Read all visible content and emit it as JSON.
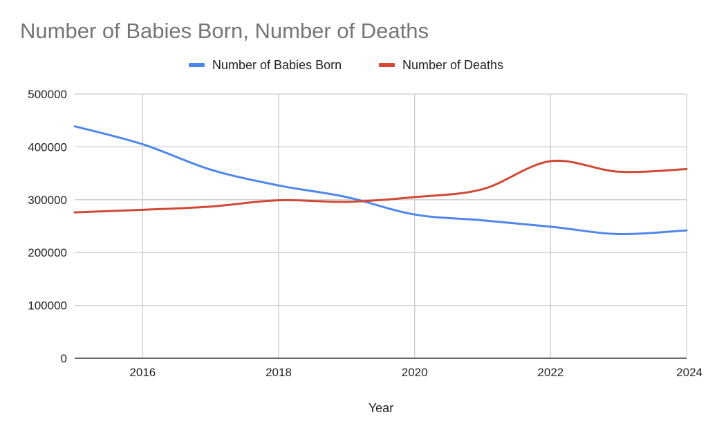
{
  "chart_data": {
    "type": "line",
    "title": "Number of Babies Born, Number of Deaths",
    "xlabel": "Year",
    "ylabel": "",
    "x": [
      2015,
      2016,
      2017,
      2018,
      2019,
      2020,
      2021,
      2022,
      2023,
      2024
    ],
    "xlim": [
      2015,
      2024
    ],
    "ylim": [
      0,
      500000
    ],
    "x_ticks": [
      2016,
      2018,
      2020,
      2022,
      2024
    ],
    "y_ticks": [
      0,
      100000,
      200000,
      300000,
      400000,
      500000
    ],
    "grid": true,
    "legend_position": "top-center",
    "series": [
      {
        "name": "Number of Babies Born",
        "color": "#4f86ec",
        "values": [
          439000,
          405000,
          357000,
          327000,
          305000,
          272000,
          261000,
          249000,
          235000,
          242000
        ]
      },
      {
        "name": "Number of Deaths",
        "color": "#d14836",
        "values": [
          276000,
          281000,
          287000,
          299000,
          296000,
          305000,
          320000,
          373000,
          353000,
          358000
        ]
      }
    ]
  }
}
